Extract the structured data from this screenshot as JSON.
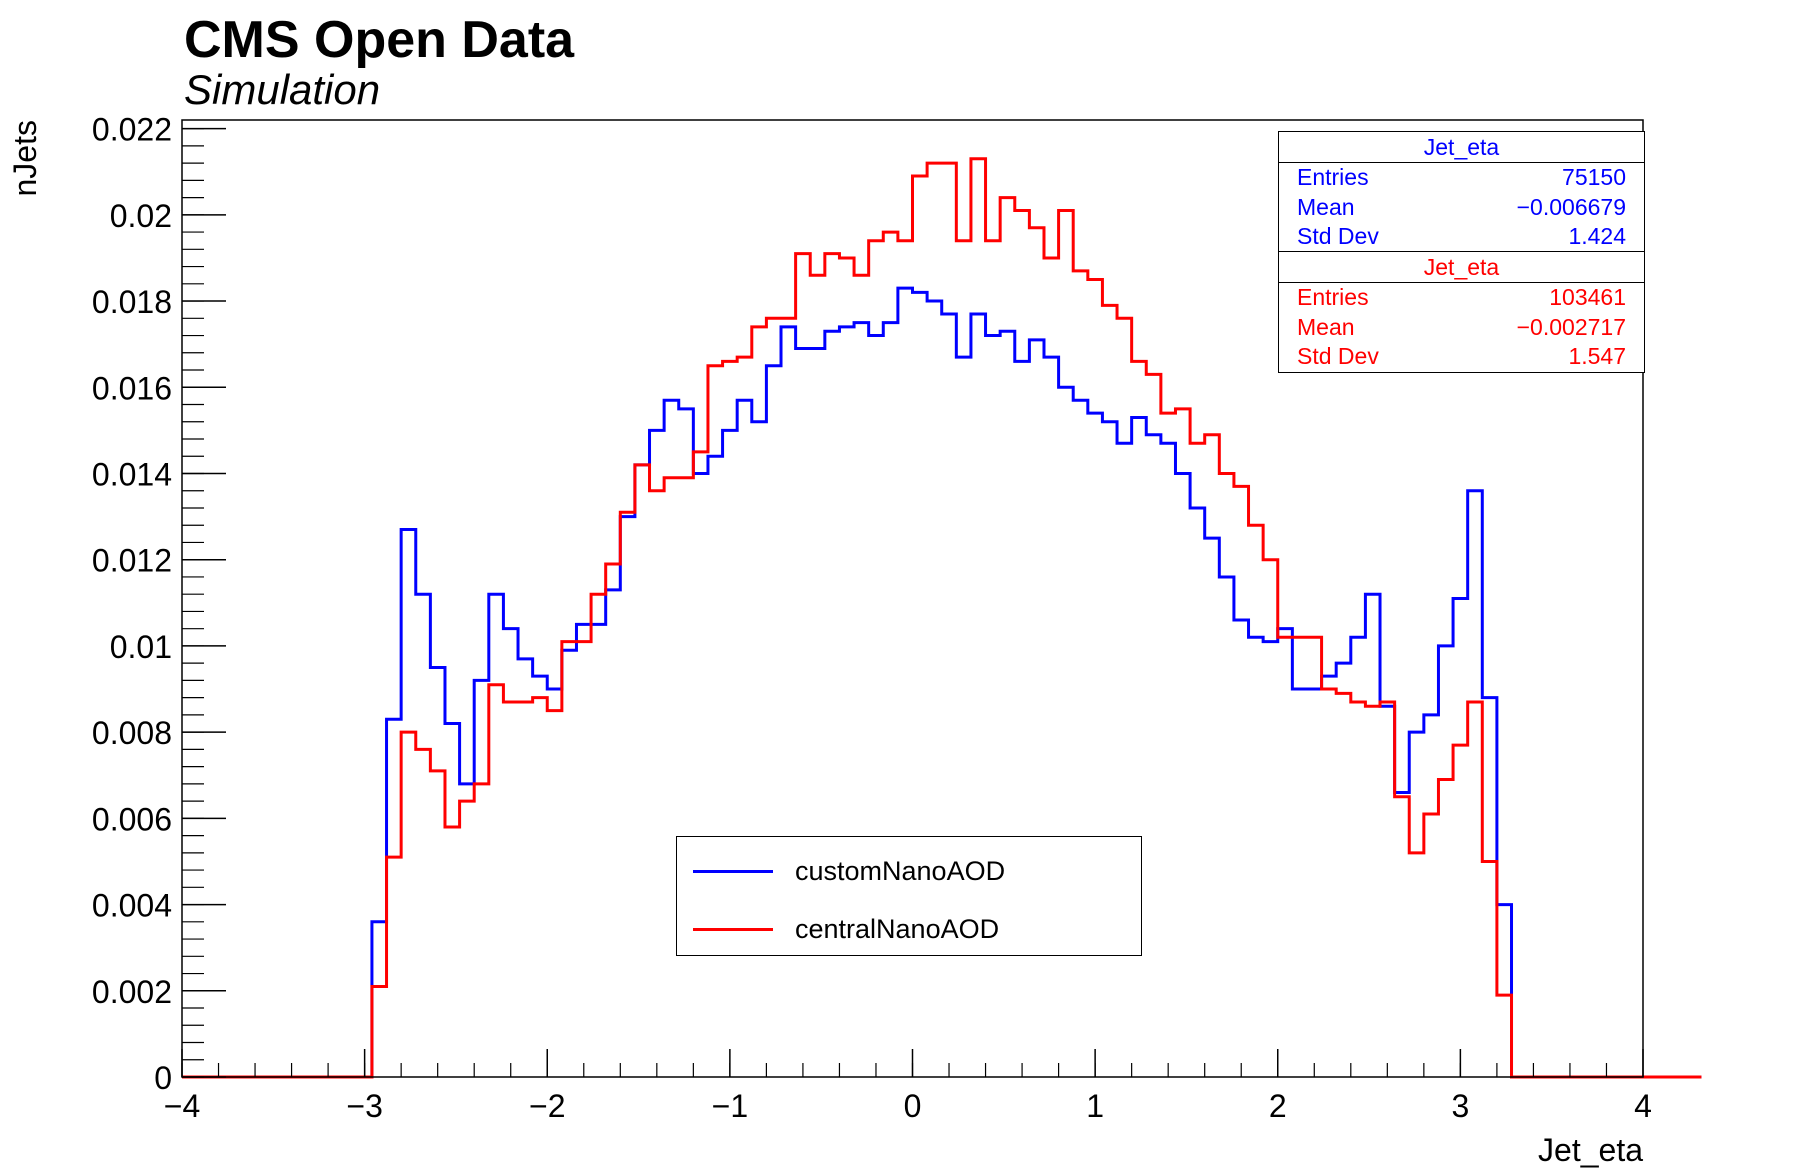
{
  "header": {
    "title": "CMS Open Data",
    "subtitle": "Simulation"
  },
  "colors": {
    "custom": "#0000ff",
    "central": "#ff0000",
    "axis": "#000000"
  },
  "stats": [
    {
      "name": "Jet_eta",
      "color": "#0000ff",
      "entries_label": "Entries",
      "entries": "75150",
      "mean_label": "Mean",
      "mean": "−0.006679",
      "std_label": "Std Dev",
      "std": "1.424"
    },
    {
      "name": "Jet_eta",
      "color": "#ff0000",
      "entries_label": "Entries",
      "entries": "103461",
      "mean_label": "Mean",
      "mean": "−0.002717",
      "std_label": "Std Dev",
      "std": "1.547"
    }
  ],
  "legend": {
    "items": [
      {
        "label": "customNanoAOD",
        "color": "#0000ff"
      },
      {
        "label": "centralNanoAOD",
        "color": "#ff0000"
      }
    ]
  },
  "chart_data": {
    "type": "step-histogram",
    "xlabel": "Jet_eta",
    "ylabel": "nJets",
    "xlim": [
      -4,
      4
    ],
    "ylim": [
      0,
      0.0222
    ],
    "grid": false,
    "x_ticks": [
      -4,
      -3,
      -2,
      -1,
      0,
      1,
      2,
      3,
      4
    ],
    "x_tick_labels": [
      "−4",
      "−3",
      "−2",
      "−1",
      "0",
      "1",
      "2",
      "3",
      "4"
    ],
    "y_ticks": [
      0,
      0.002,
      0.004,
      0.006,
      0.008,
      0.01,
      0.012,
      0.014,
      0.016,
      0.018,
      0.02,
      0.022
    ],
    "y_tick_labels": [
      "0",
      "0.002",
      "0.004",
      "0.006",
      "0.008",
      "0.01",
      "0.012",
      "0.014",
      "0.016",
      "0.018",
      "0.02",
      "0.022"
    ],
    "bin_width": 0.08,
    "bin_low_edge": -4,
    "series": [
      {
        "name": "customNanoAOD",
        "color": "#0000ff",
        "values": [
          0,
          0,
          0,
          0,
          0,
          0,
          0,
          0,
          0,
          0,
          0,
          0,
          0,
          0.0036,
          0.0083,
          0.0127,
          0.0112,
          0.0095,
          0.0082,
          0.0068,
          0.0092,
          0.0112,
          0.0104,
          0.0097,
          0.0093,
          0.009,
          0.0099,
          0.0105,
          0.0105,
          0.0113,
          0.013,
          0.0142,
          0.015,
          0.0157,
          0.0155,
          0.014,
          0.0144,
          0.015,
          0.0157,
          0.0152,
          0.0165,
          0.0174,
          0.0169,
          0.0169,
          0.0173,
          0.0174,
          0.0175,
          0.0172,
          0.0175,
          0.0183,
          0.0182,
          0.018,
          0.0177,
          0.0167,
          0.0177,
          0.0172,
          0.0173,
          0.0166,
          0.0171,
          0.0167,
          0.016,
          0.0157,
          0.0154,
          0.0152,
          0.0147,
          0.0153,
          0.0149,
          0.0147,
          0.014,
          0.0132,
          0.0125,
          0.0116,
          0.0106,
          0.0102,
          0.0101,
          0.0104,
          0.009,
          0.009,
          0.0093,
          0.0096,
          0.0102,
          0.0112,
          0.0086,
          0.0066,
          0.008,
          0.0084,
          0.01,
          0.0111,
          0.0136,
          0.0088,
          0.004,
          0,
          0,
          0,
          0,
          0,
          0,
          0,
          0,
          0,
          0,
          0,
          0,
          0
        ]
      },
      {
        "name": "centralNanoAOD",
        "color": "#ff0000",
        "values": [
          0,
          0,
          0,
          0,
          0,
          0,
          0,
          0,
          0,
          0,
          0,
          0,
          0,
          0.0021,
          0.0051,
          0.008,
          0.0076,
          0.0071,
          0.0058,
          0.0064,
          0.0068,
          0.0091,
          0.0087,
          0.0087,
          0.0088,
          0.0085,
          0.0101,
          0.0101,
          0.0112,
          0.0119,
          0.0131,
          0.0142,
          0.0136,
          0.0139,
          0.0139,
          0.0145,
          0.0165,
          0.0166,
          0.0167,
          0.0174,
          0.0176,
          0.0176,
          0.0191,
          0.0186,
          0.0191,
          0.019,
          0.0186,
          0.0194,
          0.0196,
          0.0194,
          0.0209,
          0.0212,
          0.0212,
          0.0194,
          0.0213,
          0.0194,
          0.0204,
          0.0201,
          0.0197,
          0.019,
          0.0201,
          0.0187,
          0.0185,
          0.0179,
          0.0176,
          0.0166,
          0.0163,
          0.0154,
          0.0155,
          0.0147,
          0.0149,
          0.014,
          0.0137,
          0.0128,
          0.012,
          0.0102,
          0.0102,
          0.0102,
          0.009,
          0.0089,
          0.0087,
          0.0086,
          0.0087,
          0.0065,
          0.0052,
          0.0061,
          0.0069,
          0.0077,
          0.0087,
          0.005,
          0.0019,
          0,
          0,
          0,
          0,
          0,
          0,
          0,
          0,
          0,
          0,
          0,
          0,
          0
        ]
      }
    ]
  }
}
